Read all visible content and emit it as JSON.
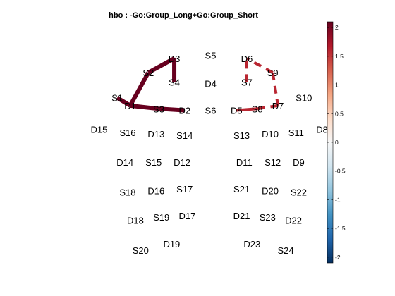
{
  "chart_data": {
    "type": "network",
    "title": "hbo : -Go:Group_Long+Go:Group_Short",
    "optodes": [
      {
        "label": "S1",
        "x": 12,
        "y": 75
      },
      {
        "label": "D1",
        "x": 14.5,
        "y": 70
      },
      {
        "label": "S2",
        "x": 18,
        "y": 91
      },
      {
        "label": "S3",
        "x": 20,
        "y": 68
      },
      {
        "label": "D2",
        "x": 25,
        "y": 67
      },
      {
        "label": "D3",
        "x": 23,
        "y": 100
      },
      {
        "label": "S4",
        "x": 23,
        "y": 85
      },
      {
        "label": "S5",
        "x": 30,
        "y": 102
      },
      {
        "label": "D4",
        "x": 30,
        "y": 84
      },
      {
        "label": "S6",
        "x": 30,
        "y": 67
      },
      {
        "label": "D6",
        "x": 37,
        "y": 100
      },
      {
        "label": "S7",
        "x": 37,
        "y": 85
      },
      {
        "label": "D5",
        "x": 35,
        "y": 67
      },
      {
        "label": "S8",
        "x": 39,
        "y": 68
      },
      {
        "label": "S9",
        "x": 42,
        "y": 91
      },
      {
        "label": "D7",
        "x": 43,
        "y": 70
      },
      {
        "label": "S10",
        "x": 48,
        "y": 75
      },
      {
        "label": "D15",
        "x": 8.5,
        "y": 55
      },
      {
        "label": "S16",
        "x": 14,
        "y": 53
      },
      {
        "label": "D13",
        "x": 19.5,
        "y": 52
      },
      {
        "label": "S14",
        "x": 25,
        "y": 51
      },
      {
        "label": "S13",
        "x": 36,
        "y": 51
      },
      {
        "label": "D10",
        "x": 41.5,
        "y": 52
      },
      {
        "label": "S11",
        "x": 46.5,
        "y": 53
      },
      {
        "label": "D8",
        "x": 51.5,
        "y": 55
      },
      {
        "label": "D14",
        "x": 13.5,
        "y": 34
      },
      {
        "label": "S15",
        "x": 19,
        "y": 34
      },
      {
        "label": "D12",
        "x": 24.5,
        "y": 34
      },
      {
        "label": "D11",
        "x": 36.5,
        "y": 34
      },
      {
        "label": "S12",
        "x": 42,
        "y": 34
      },
      {
        "label": "D9",
        "x": 47,
        "y": 34
      },
      {
        "label": "S18",
        "x": 14,
        "y": 15
      },
      {
        "label": "D16",
        "x": 19.5,
        "y": 16
      },
      {
        "label": "S17",
        "x": 25,
        "y": 17
      },
      {
        "label": "S21",
        "x": 36,
        "y": 17
      },
      {
        "label": "D20",
        "x": 41.5,
        "y": 16
      },
      {
        "label": "S22",
        "x": 47,
        "y": 15
      },
      {
        "label": "D18",
        "x": 15.5,
        "y": -3
      },
      {
        "label": "S19",
        "x": 20.5,
        "y": -1
      },
      {
        "label": "D17",
        "x": 25.5,
        "y": 0
      },
      {
        "label": "D21",
        "x": 36,
        "y": 0
      },
      {
        "label": "S23",
        "x": 41,
        "y": -1
      },
      {
        "label": "D22",
        "x": 46,
        "y": -3
      },
      {
        "label": "S20",
        "x": 16.5,
        "y": -22
      },
      {
        "label": "D19",
        "x": 22.5,
        "y": -18
      },
      {
        "label": "D23",
        "x": 38,
        "y": -18
      },
      {
        "label": "S24",
        "x": 44.5,
        "y": -22
      }
    ],
    "links": [
      {
        "source": "S1",
        "detector": "D1",
        "value": 2.1,
        "style": "solid"
      },
      {
        "source": "S2",
        "detector": "D1",
        "value": 2.1,
        "style": "solid"
      },
      {
        "source": "S3",
        "detector": "D1",
        "value": 2.1,
        "style": "solid"
      },
      {
        "source": "S3",
        "detector": "D2",
        "value": 2.1,
        "style": "solid"
      },
      {
        "source": "S2",
        "detector": "D3",
        "value": 2.1,
        "style": "solid"
      },
      {
        "source": "S4",
        "detector": "D3",
        "value": 2.1,
        "style": "solid"
      },
      {
        "source": "S7",
        "detector": "D6",
        "value": 1.6,
        "style": "dashed"
      },
      {
        "source": "S9",
        "detector": "D6",
        "value": 1.6,
        "style": "dashed"
      },
      {
        "source": "S9",
        "detector": "D7",
        "value": 1.6,
        "style": "dashed"
      },
      {
        "source": "S8",
        "detector": "D7",
        "value": 1.6,
        "style": "dashed"
      },
      {
        "source": "S8",
        "detector": "D5",
        "value": 1.6,
        "style": "solid"
      }
    ],
    "colorbar": {
      "range": [
        -2.1,
        2.1
      ],
      "ticks": [
        -2,
        -1.5,
        -1,
        -0.5,
        0,
        0.5,
        1,
        1.5,
        2
      ],
      "tick_labels": [
        "-2",
        "-1.5",
        "-1",
        "-0.5",
        "0",
        "0.5",
        "1",
        "1.5",
        "2"
      ],
      "colormap": [
        "#053061",
        "#2166ac",
        "#4393c3",
        "#92c5de",
        "#d1e5f0",
        "#f7f7f7",
        "#fddbc7",
        "#f4a582",
        "#d6604d",
        "#b2182b",
        "#67001f"
      ]
    }
  }
}
